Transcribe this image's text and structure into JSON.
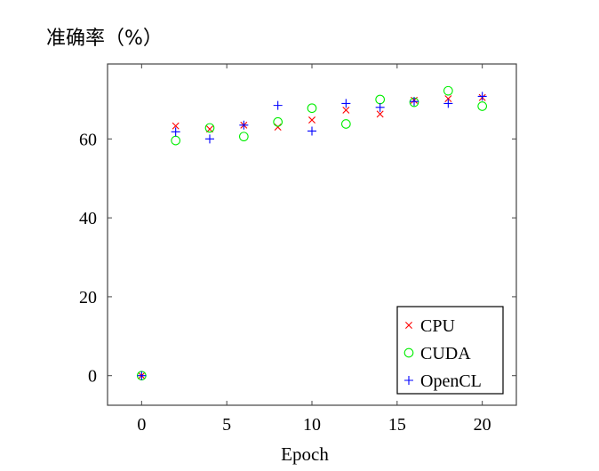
{
  "chart_data": {
    "type": "scatter",
    "title": "",
    "xlabel": "Epoch",
    "ylabel": "准确率（%）",
    "xlim": [
      -2,
      22
    ],
    "ylim": [
      -7.5,
      79
    ],
    "x_ticks": [
      0,
      5,
      10,
      15,
      20
    ],
    "y_ticks": [
      0,
      20,
      40,
      60
    ],
    "grid": false,
    "legend_position": "bottom-right",
    "series": [
      {
        "name": "CPU",
        "marker": "cross",
        "color": "#ff0000",
        "points": [
          [
            0,
            0
          ],
          [
            2,
            63.3
          ],
          [
            4,
            62.5
          ],
          [
            6,
            63.5
          ],
          [
            8,
            63.0
          ],
          [
            10,
            64.8
          ],
          [
            12,
            67.3
          ],
          [
            14,
            66.3
          ],
          [
            16,
            69.8
          ],
          [
            18,
            70.2
          ],
          [
            20,
            70.5
          ]
        ]
      },
      {
        "name": "CUDA",
        "marker": "circle",
        "color": "#00ee00",
        "points": [
          [
            0,
            0
          ],
          [
            2,
            59.6
          ],
          [
            4,
            62.8
          ],
          [
            6,
            60.6
          ],
          [
            8,
            64.3
          ],
          [
            10,
            67.8
          ],
          [
            12,
            63.8
          ],
          [
            14,
            70.0
          ],
          [
            16,
            69.3
          ],
          [
            18,
            72.2
          ],
          [
            20,
            68.3
          ]
        ]
      },
      {
        "name": "OpenCL",
        "marker": "plus",
        "color": "#0000ff",
        "points": [
          [
            0,
            0
          ],
          [
            2,
            61.8
          ],
          [
            4,
            60.0
          ],
          [
            6,
            63.5
          ],
          [
            8,
            68.5
          ],
          [
            10,
            62.0
          ],
          [
            12,
            69.0
          ],
          [
            14,
            68.0
          ],
          [
            16,
            69.5
          ],
          [
            18,
            69.0
          ],
          [
            20,
            70.8
          ]
        ]
      }
    ]
  }
}
